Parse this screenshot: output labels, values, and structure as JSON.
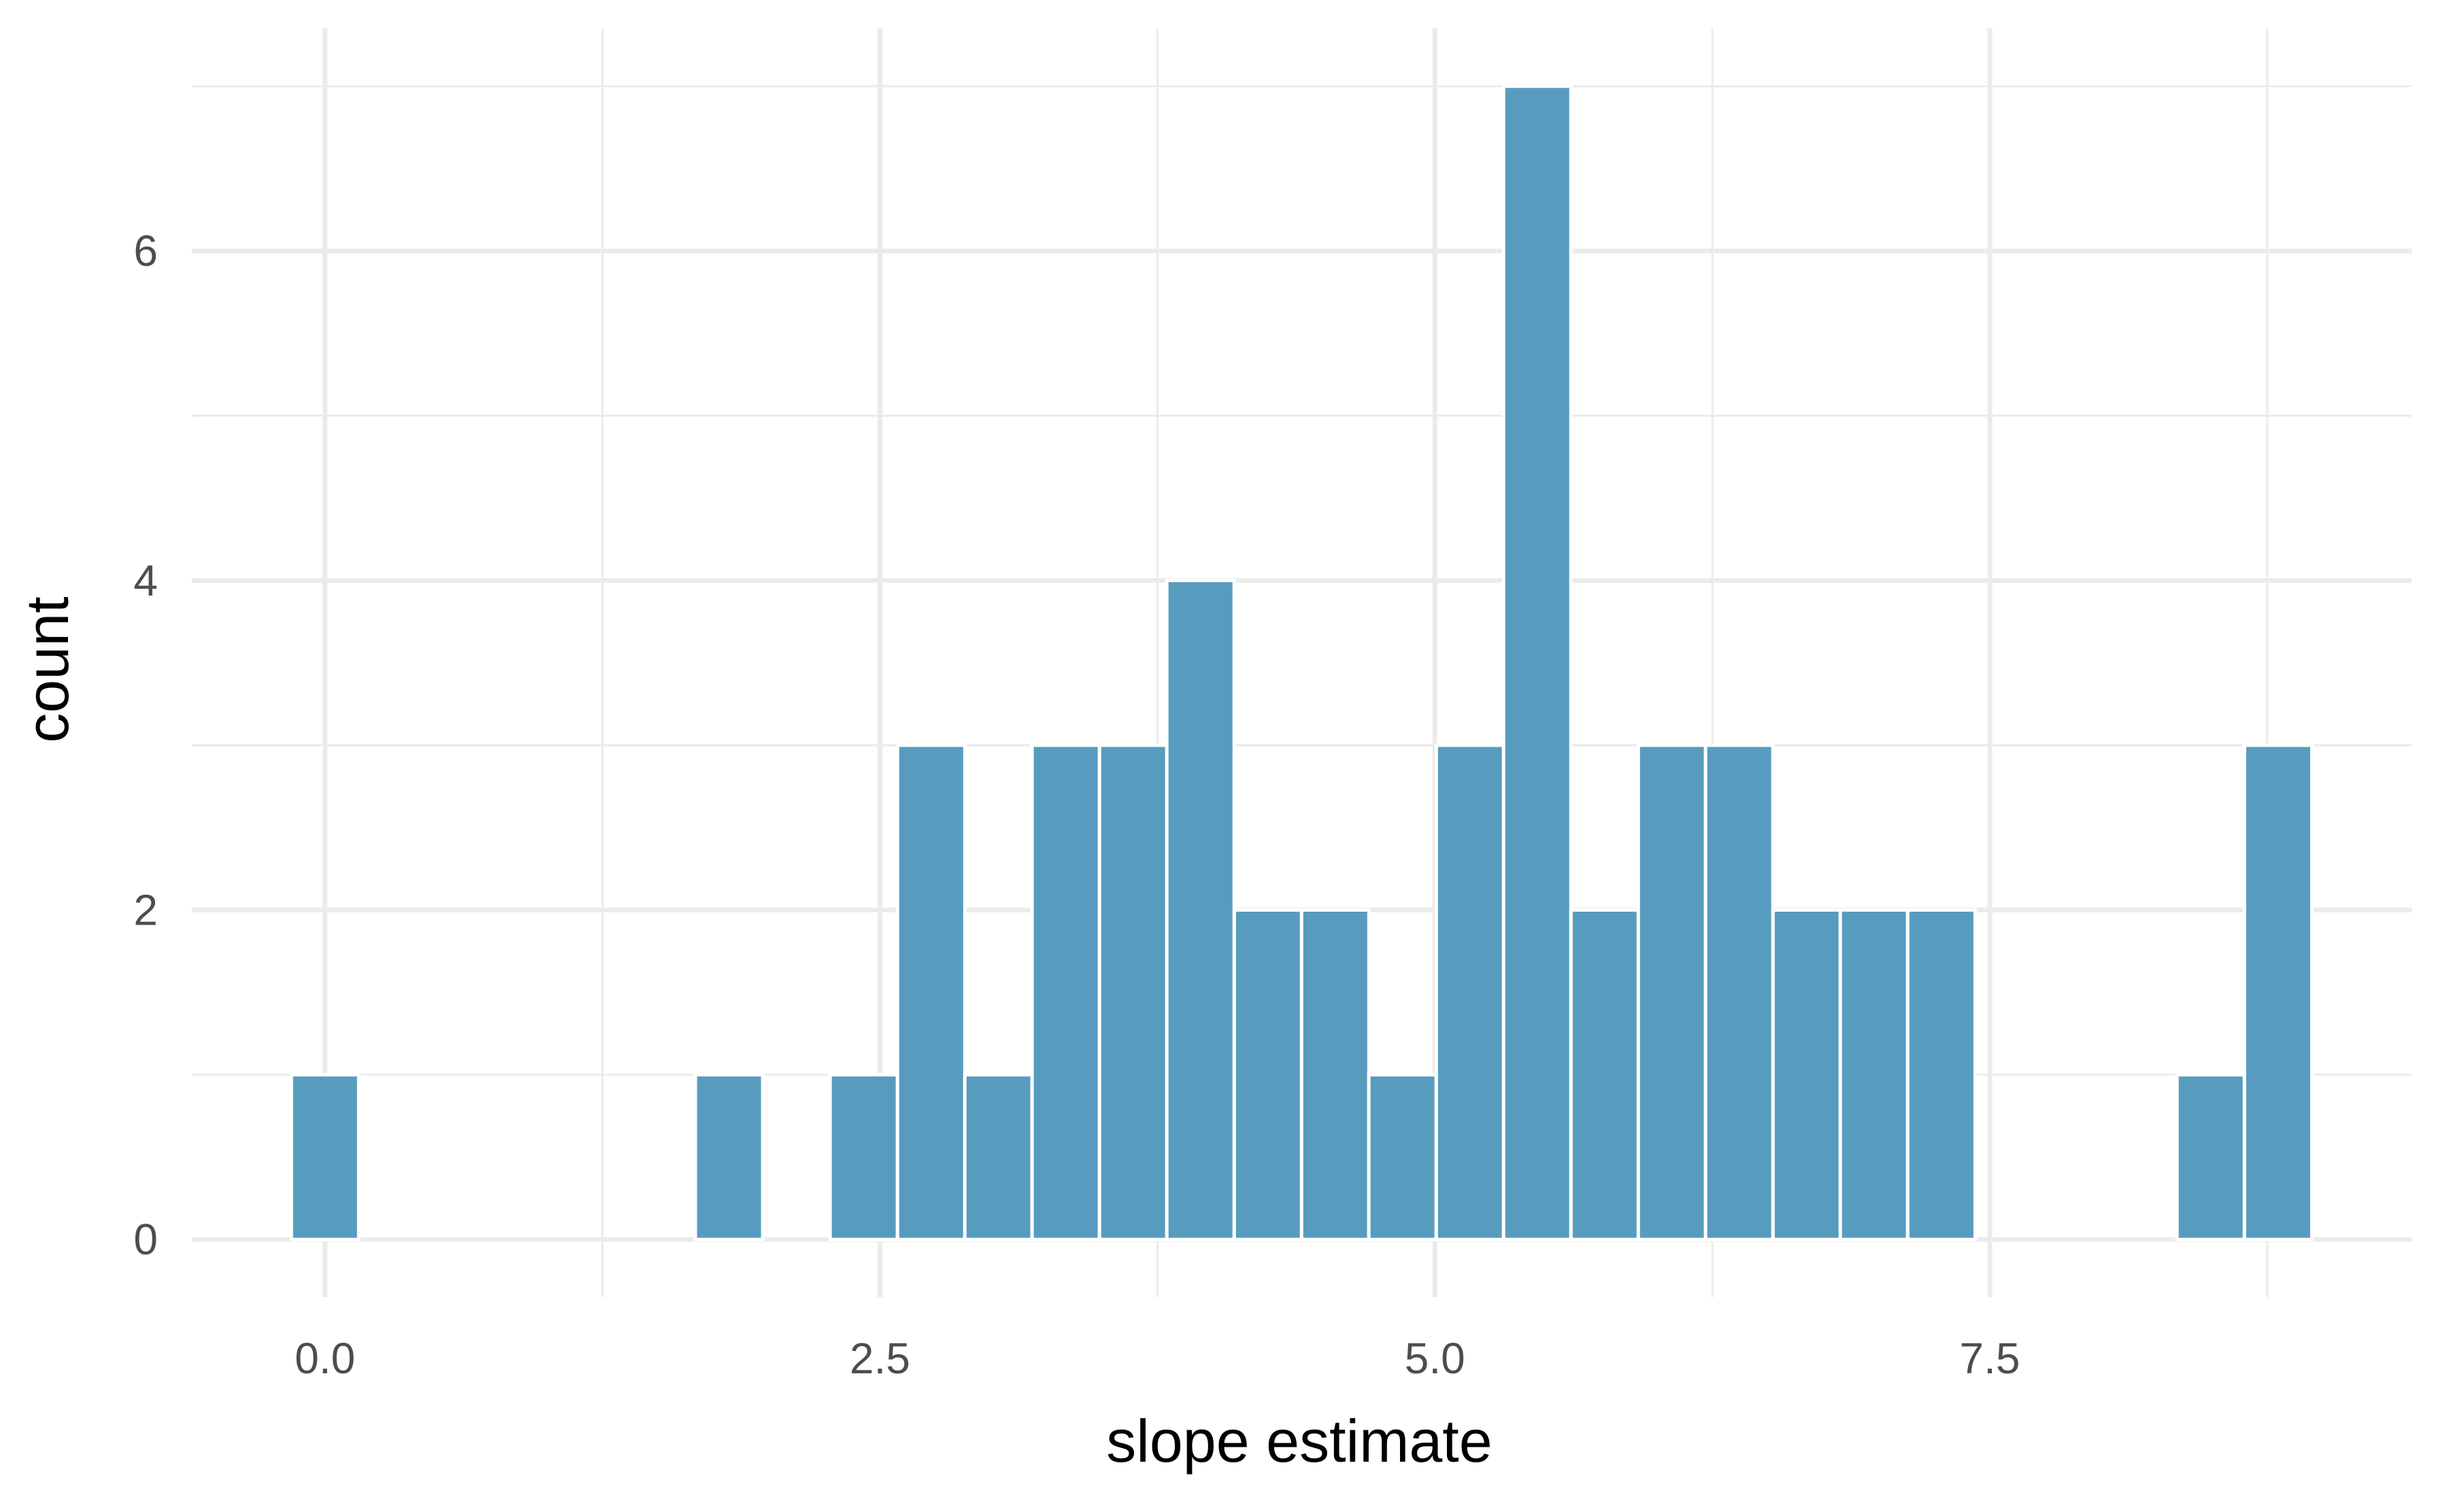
{
  "chart_data": {
    "type": "bar",
    "subtype": "histogram",
    "title": "",
    "xlabel": "slope estimate",
    "ylabel": "count",
    "bin_width": 0.3034,
    "bins": [
      {
        "x": 0.0,
        "count": 1
      },
      {
        "x": 0.303,
        "count": 0
      },
      {
        "x": 0.607,
        "count": 0
      },
      {
        "x": 0.91,
        "count": 0
      },
      {
        "x": 1.214,
        "count": 0
      },
      {
        "x": 1.517,
        "count": 0
      },
      {
        "x": 1.82,
        "count": 1
      },
      {
        "x": 2.124,
        "count": 0
      },
      {
        "x": 2.427,
        "count": 1
      },
      {
        "x": 2.731,
        "count": 3
      },
      {
        "x": 3.034,
        "count": 1
      },
      {
        "x": 3.337,
        "count": 3
      },
      {
        "x": 3.641,
        "count": 3
      },
      {
        "x": 3.944,
        "count": 4
      },
      {
        "x": 4.248,
        "count": 2
      },
      {
        "x": 4.551,
        "count": 2
      },
      {
        "x": 4.854,
        "count": 1
      },
      {
        "x": 5.158,
        "count": 3
      },
      {
        "x": 5.461,
        "count": 7
      },
      {
        "x": 5.765,
        "count": 2
      },
      {
        "x": 6.068,
        "count": 3
      },
      {
        "x": 6.371,
        "count": 3
      },
      {
        "x": 6.675,
        "count": 2
      },
      {
        "x": 6.978,
        "count": 2
      },
      {
        "x": 7.282,
        "count": 2
      },
      {
        "x": 7.585,
        "count": 0
      },
      {
        "x": 7.888,
        "count": 0
      },
      {
        "x": 8.192,
        "count": 0
      },
      {
        "x": 8.495,
        "count": 1
      },
      {
        "x": 8.799,
        "count": 3
      }
    ],
    "xlim": [
      -0.6,
      9.4
    ],
    "ylim": [
      -0.35,
      7.35
    ],
    "x_ticks": [
      "0.0",
      "2.5",
      "5.0",
      "7.5"
    ],
    "x_tick_values": [
      0.0,
      2.5,
      5.0,
      7.5
    ],
    "y_ticks": [
      "0",
      "2",
      "4",
      "6"
    ],
    "y_tick_values": [
      0,
      2,
      4,
      6
    ],
    "x_minor_values": [
      1.25,
      3.75,
      6.25,
      8.75
    ],
    "y_minor_values": [
      1,
      3,
      5,
      7
    ],
    "grid": true,
    "colors": {
      "bar_fill": "#579cbf",
      "bar_outline": "#ffffff",
      "grid": "#ebebeb",
      "tick_text": "#4d4d4d",
      "title_text": "#000000"
    }
  }
}
